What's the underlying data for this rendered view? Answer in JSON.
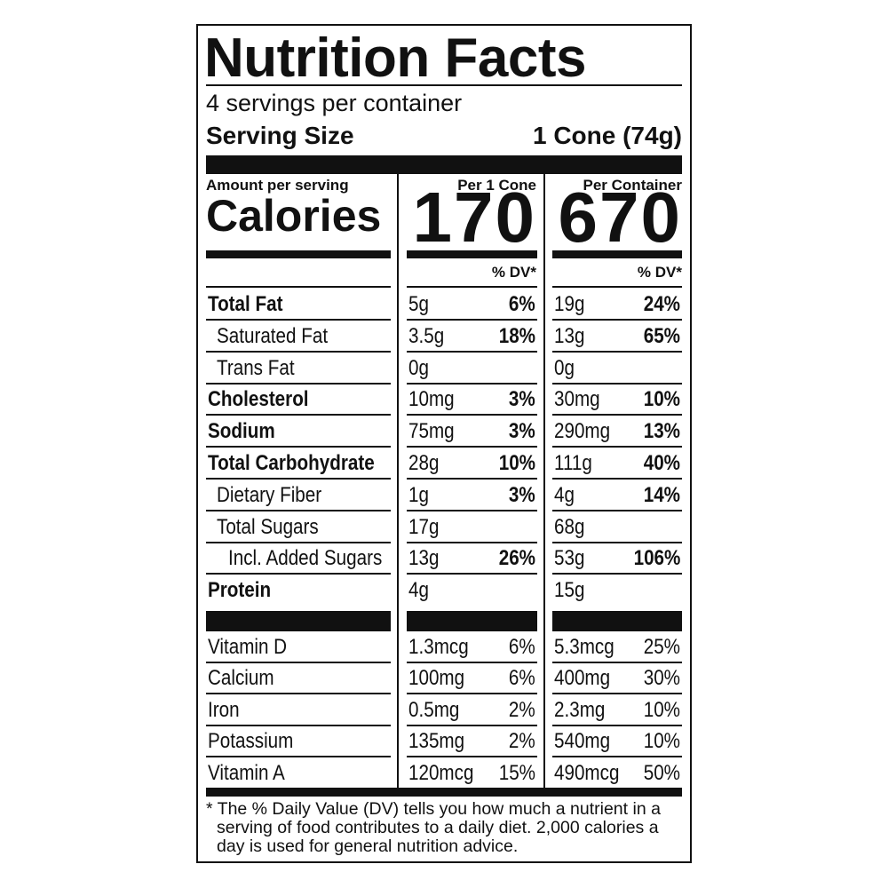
{
  "title": "Nutrition Facts",
  "servings_per_container": "4 servings per container",
  "serving_size": {
    "label": "Serving Size",
    "value": "1 Cone (74g)"
  },
  "amount_per_serving": "Amount per serving",
  "calories_label": "Calories",
  "columns": [
    {
      "header": "Per 1 Cone",
      "calories": "170",
      "dv_header": "% DV*"
    },
    {
      "header": "Per Container",
      "calories": "670",
      "dv_header": "% DV*"
    }
  ],
  "nutrients": [
    {
      "name": "Total Fat",
      "bold": true,
      "indent": 0,
      "per_serving": {
        "amount": "5g",
        "dv": "6%"
      },
      "per_container": {
        "amount": "19g",
        "dv": "24%"
      }
    },
    {
      "name": "Saturated Fat",
      "bold": false,
      "indent": 1,
      "per_serving": {
        "amount": "3.5g",
        "dv": "18%"
      },
      "per_container": {
        "amount": "13g",
        "dv": "65%"
      }
    },
    {
      "name": "Trans Fat",
      "bold": false,
      "indent": 1,
      "per_serving": {
        "amount": "0g",
        "dv": ""
      },
      "per_container": {
        "amount": "0g",
        "dv": ""
      }
    },
    {
      "name": "Cholesterol",
      "bold": true,
      "indent": 0,
      "per_serving": {
        "amount": "10mg",
        "dv": "3%"
      },
      "per_container": {
        "amount": "30mg",
        "dv": "10%"
      }
    },
    {
      "name": "Sodium",
      "bold": true,
      "indent": 0,
      "per_serving": {
        "amount": "75mg",
        "dv": "3%"
      },
      "per_container": {
        "amount": "290mg",
        "dv": "13%"
      }
    },
    {
      "name": "Total Carbohydrate",
      "bold": true,
      "indent": 0,
      "per_serving": {
        "amount": "28g",
        "dv": "10%"
      },
      "per_container": {
        "amount": "111g",
        "dv": "40%"
      }
    },
    {
      "name": "Dietary Fiber",
      "bold": false,
      "indent": 1,
      "per_serving": {
        "amount": "1g",
        "dv": "3%"
      },
      "per_container": {
        "amount": "4g",
        "dv": "14%"
      }
    },
    {
      "name": "Total Sugars",
      "bold": false,
      "indent": 1,
      "per_serving": {
        "amount": "17g",
        "dv": ""
      },
      "per_container": {
        "amount": "68g",
        "dv": ""
      }
    },
    {
      "name": "Incl. Added Sugars",
      "bold": false,
      "indent": 2,
      "per_serving": {
        "amount": "13g",
        "dv": "26%"
      },
      "per_container": {
        "amount": "53g",
        "dv": "106%"
      }
    },
    {
      "name": "Protein",
      "bold": true,
      "indent": 0,
      "per_serving": {
        "amount": "4g",
        "dv": ""
      },
      "per_container": {
        "amount": "15g",
        "dv": ""
      }
    }
  ],
  "vitamins": [
    {
      "name": "Vitamin D",
      "per_serving": {
        "amount": "1.3mcg",
        "dv": "6%"
      },
      "per_container": {
        "amount": "5.3mcg",
        "dv": "25%"
      }
    },
    {
      "name": "Calcium",
      "per_serving": {
        "amount": "100mg",
        "dv": "6%"
      },
      "per_container": {
        "amount": "400mg",
        "dv": "30%"
      }
    },
    {
      "name": "Iron",
      "per_serving": {
        "amount": "0.5mg",
        "dv": "2%"
      },
      "per_container": {
        "amount": "2.3mg",
        "dv": "10%"
      }
    },
    {
      "name": "Potassium",
      "per_serving": {
        "amount": "135mg",
        "dv": "2%"
      },
      "per_container": {
        "amount": "540mg",
        "dv": "10%"
      }
    },
    {
      "name": "Vitamin A",
      "per_serving": {
        "amount": "120mcg",
        "dv": "15%"
      },
      "per_container": {
        "amount": "490mcg",
        "dv": "50%"
      }
    }
  ],
  "footnote": "* The % Daily Value (DV) tells you how much a nutrient in a serving of food contributes to a daily diet. 2,000 calories a day is used for general nutrition advice."
}
